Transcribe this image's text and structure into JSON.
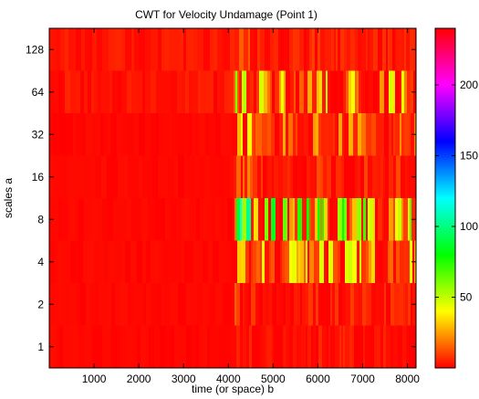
{
  "chart_data": {
    "type": "heatmap",
    "title": "CWT for Velocity Undamage (Point 1)",
    "xlabel": "time (or space) b",
    "ylabel": "scales a",
    "xlim": [
      0,
      8192
    ],
    "x_ticks": [
      1000,
      2000,
      3000,
      4000,
      5000,
      6000,
      7000,
      8000
    ],
    "y_scale": "log2",
    "y_ticks": [
      1,
      2,
      4,
      8,
      16,
      32,
      64,
      128
    ],
    "y_rows": [
      1,
      2,
      4,
      8,
      16,
      32,
      64,
      128
    ],
    "transition_x": 4096,
    "colorbar": {
      "ticks": [
        50,
        100,
        150,
        200
      ],
      "range": [
        0,
        240
      ],
      "colormap": "hsv",
      "colors": [
        "#ff0000",
        "#ffff00",
        "#00ff00",
        "#00ffff",
        "#0000ff",
        "#ff00ff",
        "#ff0000"
      ]
    },
    "row_values": [
      {
        "scale": 128,
        "before": 6,
        "after": 6
      },
      {
        "scale": 64,
        "before": 6,
        "after": 28
      },
      {
        "scale": 32,
        "before": 2,
        "after": 18
      },
      {
        "scale": 16,
        "before": 2,
        "after": 8
      },
      {
        "scale": 8,
        "before": 2,
        "after": 50
      },
      {
        "scale": 4,
        "before": 2,
        "after": 30
      },
      {
        "scale": 2,
        "before": 2,
        "after": 6
      },
      {
        "scale": 1,
        "before": 2,
        "after": 4
      }
    ]
  }
}
